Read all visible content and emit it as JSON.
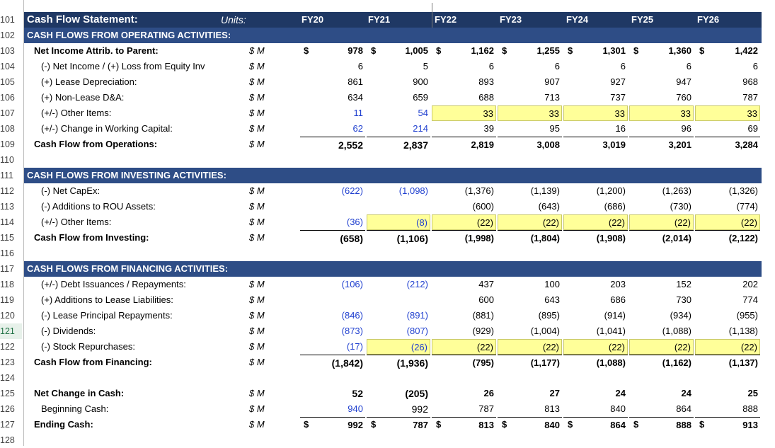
{
  "row_numbers": [
    "101",
    "102",
    "103",
    "104",
    "105",
    "106",
    "107",
    "108",
    "109",
    "110",
    "111",
    "112",
    "113",
    "114",
    "115",
    "116",
    "117",
    "118",
    "119",
    "120",
    "121",
    "122",
    "123",
    "124",
    "125",
    "126",
    "127",
    "128"
  ],
  "header": {
    "title": "Cash Flow Statement:",
    "units": "Units:",
    "years": [
      "FY20",
      "FY21",
      "FY22",
      "FY23",
      "FY24",
      "FY25",
      "FY26"
    ]
  },
  "sections": {
    "operating": "CASH FLOWS FROM OPERATING ACTIVITIES:",
    "investing": "CASH FLOWS FROM INVESTING ACTIVITIES:",
    "financing": "CASH FLOWS FROM FINANCING ACTIVITIES:"
  },
  "dollar_sign": "$",
  "unit_label": "$ M",
  "rows": {
    "net_income": {
      "label": "Net Income Attrib. to Parent:",
      "values": [
        "978",
        "1,005",
        "1,162",
        "1,255",
        "1,301",
        "1,360",
        "1,422"
      ]
    },
    "equity_inv": {
      "label": "(-) Net Income / (+) Loss from Equity Inv",
      "values": [
        "6",
        "5",
        "6",
        "6",
        "6",
        "6",
        "6"
      ]
    },
    "lease_dep": {
      "label": "(+) Lease Depreciation:",
      "values": [
        "861",
        "900",
        "893",
        "907",
        "927",
        "947",
        "968"
      ]
    },
    "nonlease_da": {
      "label": "(+) Non-Lease D&A:",
      "values": [
        "634",
        "659",
        "688",
        "713",
        "737",
        "760",
        "787"
      ]
    },
    "other_items_op": {
      "label": "(+/-) Other Items:",
      "values": [
        "11",
        "54",
        "33",
        "33",
        "33",
        "33",
        "33"
      ]
    },
    "working_cap": {
      "label": "(+/-) Change in Working Capital:",
      "values": [
        "62",
        "214",
        "39",
        "95",
        "16",
        "96",
        "69"
      ]
    },
    "cfo": {
      "label": "Cash Flow from Operations:",
      "values": [
        "2,552",
        "2,837",
        "2,819",
        "3,008",
        "3,019",
        "3,201",
        "3,284"
      ]
    },
    "capex": {
      "label": "(-) Net CapEx:",
      "values": [
        "(622)",
        "(1,098)",
        "(1,376)",
        "(1,139)",
        "(1,200)",
        "(1,263)",
        "(1,326)"
      ]
    },
    "rou": {
      "label": "(-) Additions to ROU Assets:",
      "values": [
        "",
        "",
        "(600)",
        "(643)",
        "(686)",
        "(730)",
        "(774)"
      ]
    },
    "other_items_inv": {
      "label": "(+/-) Other Items:",
      "values": [
        "(36)",
        "(8)",
        "(22)",
        "(22)",
        "(22)",
        "(22)",
        "(22)"
      ]
    },
    "cfi": {
      "label": "Cash Flow from Investing:",
      "values": [
        "(658)",
        "(1,106)",
        "(1,998)",
        "(1,804)",
        "(1,908)",
        "(2,014)",
        "(2,122)"
      ]
    },
    "debt": {
      "label": "(+/-) Debt Issuances / Repayments:",
      "values": [
        "(106)",
        "(212)",
        "437",
        "100",
        "203",
        "152",
        "202"
      ]
    },
    "lease_liab": {
      "label": "(+) Additions to Lease Liabilities:",
      "values": [
        "",
        "",
        "600",
        "643",
        "686",
        "730",
        "774"
      ]
    },
    "lease_principal": {
      "label": "(-) Lease Principal Repayments:",
      "values": [
        "(846)",
        "(891)",
        "(881)",
        "(895)",
        "(914)",
        "(934)",
        "(955)"
      ]
    },
    "dividends": {
      "label": "(-) Dividends:",
      "values": [
        "(873)",
        "(807)",
        "(929)",
        "(1,004)",
        "(1,041)",
        "(1,088)",
        "(1,138)"
      ]
    },
    "repurchases": {
      "label": "(-) Stock Repurchases:",
      "values": [
        "(17)",
        "(26)",
        "(22)",
        "(22)",
        "(22)",
        "(22)",
        "(22)"
      ]
    },
    "cff": {
      "label": "Cash Flow from Financing:",
      "values": [
        "(1,842)",
        "(1,936)",
        "(795)",
        "(1,177)",
        "(1,088)",
        "(1,162)",
        "(1,137)"
      ]
    },
    "net_change": {
      "label": "Net Change in Cash:",
      "values": [
        "52",
        "(205)",
        "26",
        "27",
        "24",
        "24",
        "25"
      ]
    },
    "beginning": {
      "label": "Beginning Cash:",
      "values": [
        "940",
        "992",
        "787",
        "813",
        "840",
        "864",
        "888"
      ]
    },
    "ending": {
      "label": "Ending Cash:",
      "values": [
        "992",
        "787",
        "813",
        "840",
        "864",
        "888",
        "913"
      ]
    }
  },
  "colors": {
    "header_bg": "#1f3864",
    "section_bg": "#2e4d86",
    "input_blue": "#1f3fcf",
    "highlight_yellow": "#ffff99"
  }
}
